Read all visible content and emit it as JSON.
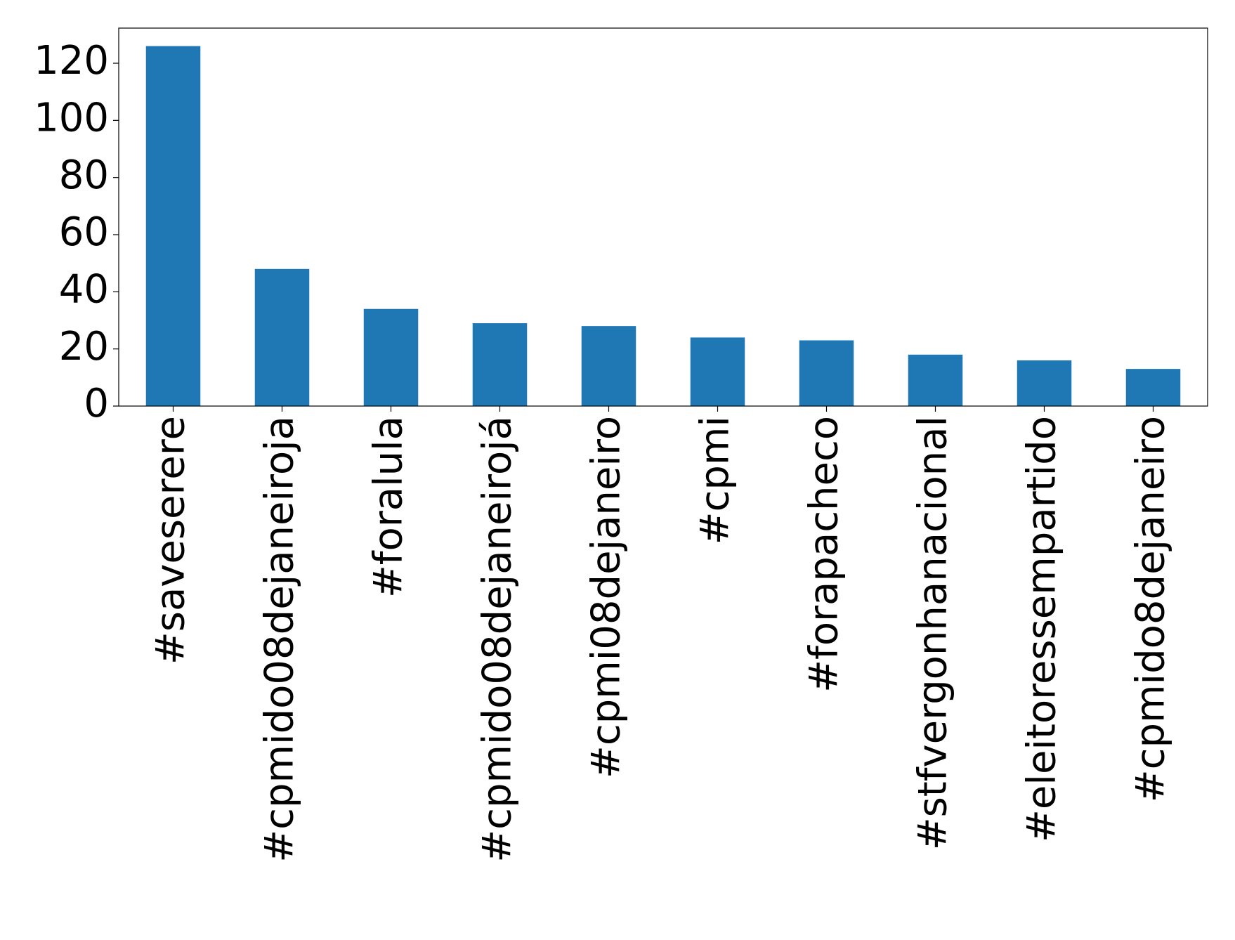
{
  "chart_data": {
    "type": "bar",
    "categories": [
      "#saveserere",
      "#cpmido08dejaneiroja",
      "#foralula",
      "#cpmido08dejaneirojá",
      "#cpmi08dejaneiro",
      "#cpmi",
      "#forapacheco",
      "#stfvergonhanacional",
      "#eleitoressempartido",
      "#cpmido8dejaneiro"
    ],
    "values": [
      126,
      48,
      34,
      29,
      28,
      24,
      23,
      18,
      16,
      13
    ],
    "color": "#1f77b4",
    "ylim": [
      0,
      132.3
    ],
    "yticks": [
      0,
      20,
      40,
      60,
      80,
      100,
      120
    ],
    "grid": false
  }
}
